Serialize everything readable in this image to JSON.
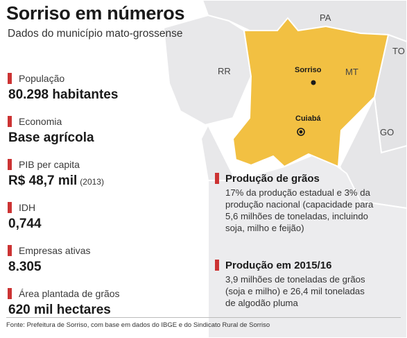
{
  "title": "Sorriso em números",
  "subtitle": "Dados do município mato-grossense",
  "stats": [
    {
      "label": "População",
      "value": "80.298 habitantes",
      "note": ""
    },
    {
      "label": "Economia",
      "value": "Base agrícola",
      "note": ""
    },
    {
      "label": "PIB per capita",
      "value": "R$ 48,7 mil",
      "note": "(2013)"
    },
    {
      "label": "IDH",
      "value": "0,744",
      "note": ""
    },
    {
      "label": "Empresas ativas",
      "value": "8.305",
      "note": ""
    },
    {
      "label": "Área plantada de grãos",
      "value": "620 mil hectares",
      "note": ""
    }
  ],
  "blocks": [
    {
      "title": "Produção de grãos",
      "lines": [
        "17% da produção estadual e 3% da",
        "produção nacional (capacidade para",
        "5,6 milhões de toneladas, incluindo",
        "soja, milho e feijão)"
      ]
    },
    {
      "title": "Produção em 2015/16",
      "lines": [
        "3,9 milhões de toneladas de grãos",
        "(soja e milho) e 26,4 mil toneladas",
        "de algodão pluma"
      ]
    }
  ],
  "map": {
    "states": {
      "pa": "PA",
      "rr": "RR",
      "mt": "MT",
      "to": "TO",
      "go": "GO"
    },
    "cities": {
      "sorriso": "Sorriso",
      "cuiaba": "Cuiabá"
    },
    "colors": {
      "highlight": "#f2c042",
      "neighbor": "#e6e6e8",
      "border": "#ffffff",
      "accent": "#cc3333"
    }
  },
  "source": "Fonte: Prefeitura de Sorriso, com base em dados do IBGE e do Sindicato Rural de Sorriso"
}
